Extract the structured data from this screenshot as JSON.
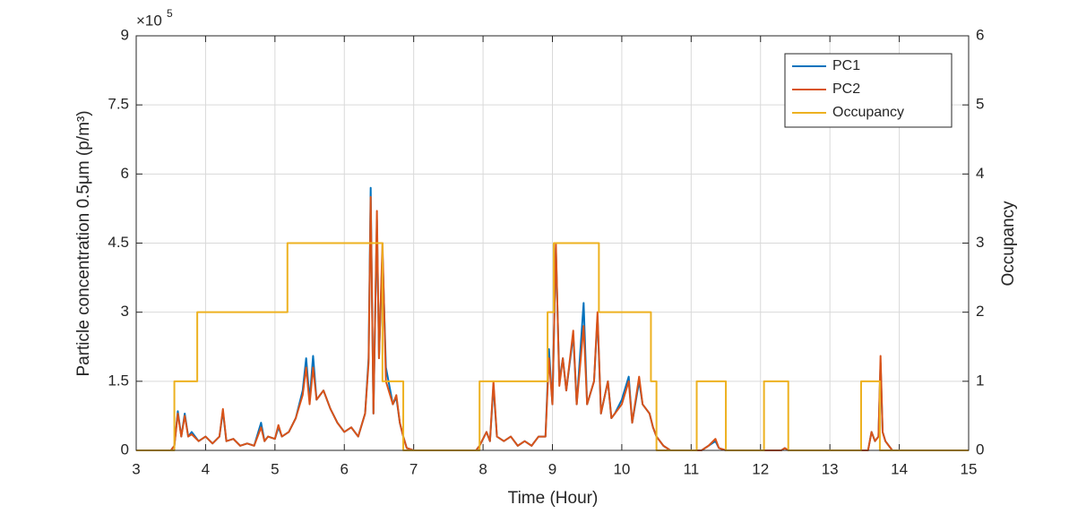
{
  "chart_data": {
    "type": "line",
    "xlabel": "Time (Hour)",
    "ylabel": "Particle concentration 0.5μm (p/m³)",
    "y2label": "Occupancy",
    "y_exponent_base": "×10",
    "y_exponent": "5",
    "xlim": [
      3,
      15
    ],
    "xticks": [
      3,
      4,
      5,
      6,
      7,
      8,
      9,
      10,
      11,
      12,
      13,
      14,
      15
    ],
    "ylim": [
      0,
      9
    ],
    "yticks": [
      0,
      1.5,
      3,
      4.5,
      6,
      7.5,
      9
    ],
    "y2lim": [
      0,
      6
    ],
    "y2ticks": [
      0,
      1,
      2,
      3,
      4,
      5,
      6
    ],
    "grid": true,
    "legend": "northeast",
    "series": [
      {
        "name": "PC1",
        "color": "#0072bd",
        "x": [
          3.0,
          3.5,
          3.55,
          3.6,
          3.65,
          3.7,
          3.75,
          3.8,
          3.9,
          4.0,
          4.1,
          4.2,
          4.25,
          4.3,
          4.4,
          4.5,
          4.6,
          4.7,
          4.8,
          4.85,
          4.9,
          5.0,
          5.05,
          5.1,
          5.2,
          5.3,
          5.4,
          5.45,
          5.5,
          5.55,
          5.6,
          5.7,
          5.8,
          5.9,
          6.0,
          6.1,
          6.2,
          6.3,
          6.35,
          6.38,
          6.42,
          6.47,
          6.5,
          6.55,
          6.6,
          6.7,
          6.75,
          6.8,
          6.85,
          6.9,
          7.0,
          7.9,
          7.95,
          8.05,
          8.1,
          8.15,
          8.2,
          8.3,
          8.4,
          8.5,
          8.6,
          8.7,
          8.8,
          8.9,
          8.95,
          9.0,
          9.05,
          9.1,
          9.15,
          9.2,
          9.3,
          9.35,
          9.45,
          9.5,
          9.6,
          9.65,
          9.7,
          9.8,
          9.85,
          9.9,
          10.0,
          10.1,
          10.15,
          10.25,
          10.3,
          10.4,
          10.45,
          10.5,
          10.6,
          10.7,
          11.15,
          11.25,
          11.35,
          11.4,
          11.5,
          12.3,
          12.35,
          12.4,
          13.55,
          13.6,
          13.65,
          13.7,
          13.73,
          13.76,
          13.8,
          13.85,
          13.9,
          15
        ],
        "values": [
          0,
          0,
          0.1,
          0.85,
          0.3,
          0.8,
          0.3,
          0.4,
          0.2,
          0.3,
          0.15,
          0.3,
          0.85,
          0.2,
          0.25,
          0.1,
          0.15,
          0.1,
          0.6,
          0.2,
          0.3,
          0.25,
          0.5,
          0.3,
          0.4,
          0.7,
          1.3,
          2.0,
          1.1,
          2.05,
          1.1,
          1.3,
          0.9,
          0.6,
          0.4,
          0.5,
          0.3,
          0.8,
          2.0,
          5.7,
          0.8,
          5.0,
          2.0,
          4.3,
          1.8,
          1.0,
          1.15,
          0.6,
          0.3,
          0.05,
          0,
          0,
          0.1,
          0.4,
          0.2,
          1.4,
          0.3,
          0.2,
          0.3,
          0.1,
          0.2,
          0.1,
          0.3,
          0.3,
          2.2,
          1.0,
          4.4,
          1.5,
          2.0,
          1.3,
          2.5,
          1.0,
          3.2,
          1.0,
          1.5,
          2.9,
          0.8,
          1.5,
          0.7,
          0.8,
          1.1,
          1.6,
          0.6,
          1.5,
          1.0,
          0.8,
          0.5,
          0.3,
          0.1,
          0,
          0,
          0.1,
          0.2,
          0.05,
          0,
          0,
          0.05,
          0,
          0,
          0.4,
          0.2,
          0.3,
          1.9,
          0.4,
          0.2,
          0.1,
          0,
          0
        ]
      },
      {
        "name": "PC2",
        "color": "#d95319",
        "x": [
          3.0,
          3.5,
          3.55,
          3.6,
          3.65,
          3.7,
          3.75,
          3.8,
          3.9,
          4.0,
          4.1,
          4.2,
          4.25,
          4.3,
          4.4,
          4.5,
          4.6,
          4.7,
          4.8,
          4.85,
          4.9,
          5.0,
          5.05,
          5.1,
          5.2,
          5.3,
          5.4,
          5.45,
          5.5,
          5.55,
          5.6,
          5.7,
          5.8,
          5.9,
          6.0,
          6.1,
          6.2,
          6.3,
          6.35,
          6.38,
          6.42,
          6.47,
          6.5,
          6.55,
          6.6,
          6.7,
          6.75,
          6.8,
          6.85,
          6.9,
          7.0,
          7.9,
          7.95,
          8.05,
          8.1,
          8.15,
          8.2,
          8.3,
          8.4,
          8.5,
          8.6,
          8.7,
          8.8,
          8.9,
          8.95,
          9.0,
          9.05,
          9.1,
          9.15,
          9.2,
          9.3,
          9.35,
          9.45,
          9.5,
          9.6,
          9.65,
          9.7,
          9.8,
          9.85,
          9.9,
          10.0,
          10.1,
          10.15,
          10.25,
          10.3,
          10.4,
          10.45,
          10.5,
          10.6,
          10.7,
          11.15,
          11.25,
          11.35,
          11.4,
          11.5,
          12.3,
          12.35,
          12.4,
          13.55,
          13.6,
          13.65,
          13.7,
          13.73,
          13.76,
          13.8,
          13.85,
          13.9,
          15
        ],
        "values": [
          0,
          0,
          0.1,
          0.8,
          0.3,
          0.75,
          0.3,
          0.35,
          0.2,
          0.3,
          0.15,
          0.3,
          0.9,
          0.2,
          0.25,
          0.1,
          0.15,
          0.1,
          0.5,
          0.2,
          0.3,
          0.25,
          0.55,
          0.3,
          0.4,
          0.7,
          1.2,
          1.8,
          1.0,
          1.8,
          1.1,
          1.3,
          0.9,
          0.6,
          0.4,
          0.5,
          0.3,
          0.8,
          1.9,
          5.5,
          0.8,
          5.2,
          2.0,
          4.5,
          1.5,
          1.0,
          1.2,
          0.6,
          0.3,
          0.05,
          0,
          0,
          0.1,
          0.4,
          0.2,
          1.5,
          0.3,
          0.2,
          0.3,
          0.1,
          0.2,
          0.1,
          0.3,
          0.3,
          2.0,
          1.0,
          4.5,
          1.4,
          2.0,
          1.3,
          2.6,
          1.0,
          2.7,
          1.0,
          1.5,
          3.0,
          0.8,
          1.5,
          0.7,
          0.8,
          1.0,
          1.5,
          0.6,
          1.6,
          1.0,
          0.8,
          0.5,
          0.3,
          0.1,
          0,
          0,
          0.1,
          0.25,
          0.05,
          0,
          0,
          0.05,
          0,
          0,
          0.4,
          0.2,
          0.3,
          2.05,
          0.4,
          0.2,
          0.1,
          0,
          0
        ]
      },
      {
        "name": "Occupancy",
        "color": "#edb120",
        "axis": "y2",
        "x": [
          3,
          3.55,
          3.55,
          3.88,
          3.88,
          5.18,
          5.18,
          6.55,
          6.55,
          6.85,
          6.85,
          7.95,
          7.95,
          8.93,
          8.93,
          9.02,
          9.02,
          9.67,
          9.67,
          10.42,
          10.42,
          10.5,
          10.5,
          11.08,
          11.08,
          11.5,
          11.5,
          12.05,
          12.05,
          12.4,
          12.4,
          13.45,
          13.45,
          13.72,
          13.72,
          15
        ],
        "values": [
          0,
          0,
          1,
          1,
          2,
          2,
          3,
          3,
          1,
          1,
          0,
          0,
          1,
          1,
          2,
          2,
          3,
          3,
          2,
          2,
          1,
          1,
          0,
          0,
          1,
          1,
          0,
          0,
          1,
          1,
          0,
          0,
          1,
          1,
          0,
          0
        ]
      }
    ]
  }
}
